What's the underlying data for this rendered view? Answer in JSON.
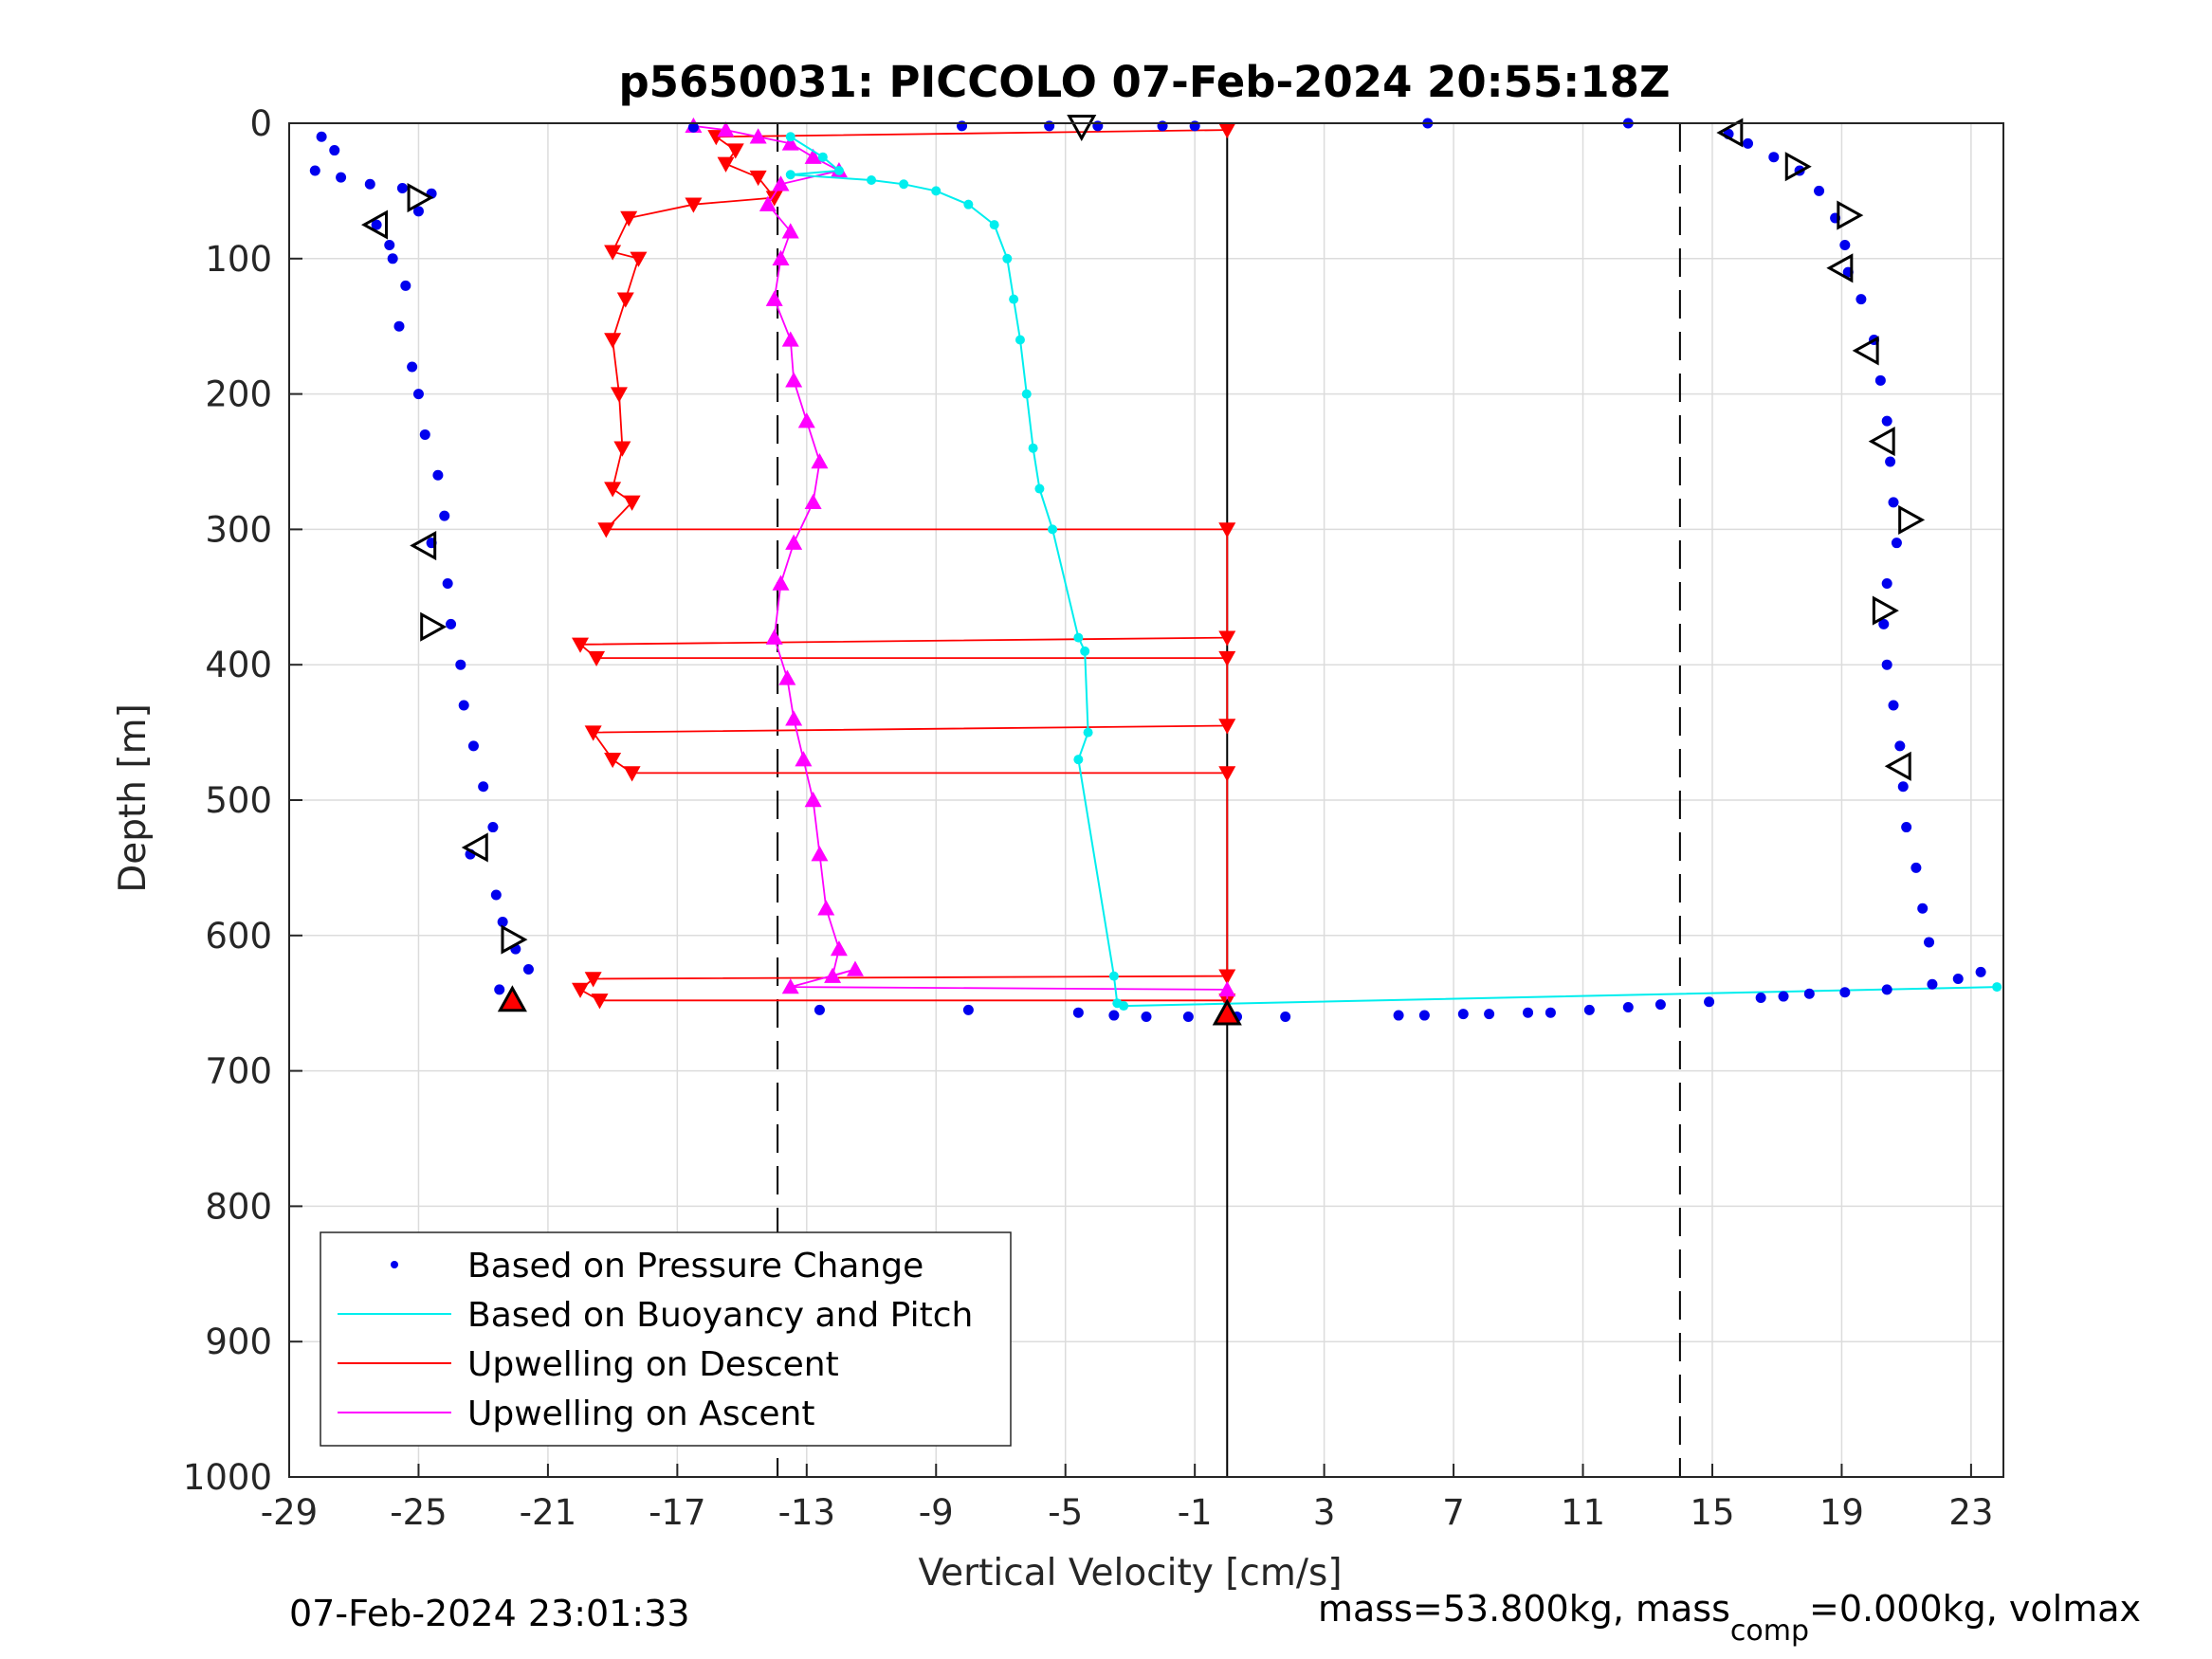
{
  "footer": {
    "left": "07-Feb-2024 23:01:33",
    "right_prefix": "mass=53.800kg, mass",
    "right_sub": "comp",
    "right_suffix": "=0.000kg, volmax"
  },
  "chart_data": {
    "type": "scatter",
    "title": "p5650031: PICCOLO 07-Feb-2024 20:55:18Z",
    "xlabel": "Vertical Velocity [cm/s]",
    "ylabel": "Depth [m]",
    "xlim": [
      -29,
      24
    ],
    "ylim": [
      1000,
      0
    ],
    "y_reversed": true,
    "xticks": [
      -29,
      -25,
      -21,
      -17,
      -13,
      -9,
      -5,
      -1,
      3,
      7,
      11,
      15,
      19,
      23
    ],
    "yticks": [
      0,
      100,
      200,
      300,
      400,
      500,
      600,
      700,
      800,
      900,
      1000
    ],
    "grid": true,
    "legend_position": "bottom-left",
    "reference_lines": [
      {
        "x": -13.9,
        "style": "dashed",
        "color": "#000000"
      },
      {
        "x": 14,
        "style": "dashed",
        "color": "#000000"
      },
      {
        "x": 0,
        "style": "solid",
        "color": "#000000"
      }
    ],
    "series": [
      {
        "name": "Based on Pressure Change",
        "color": "#0000ee",
        "marker": "dot",
        "descent": [
          [
            -28,
            10
          ],
          [
            -27.6,
            20
          ],
          [
            -28.2,
            35
          ],
          [
            -27.4,
            40
          ],
          [
            -26.5,
            45
          ],
          [
            -25.5,
            48
          ],
          [
            -24.6,
            52
          ],
          [
            -25,
            65
          ],
          [
            -26.3,
            75
          ],
          [
            -25.9,
            90
          ],
          [
            -25.8,
            100
          ],
          [
            -25.4,
            120
          ],
          [
            -25.6,
            150
          ],
          [
            -25.2,
            180
          ],
          [
            -25,
            200
          ],
          [
            -24.8,
            230
          ],
          [
            -24.4,
            260
          ],
          [
            -24.2,
            290
          ],
          [
            -24.6,
            310
          ],
          [
            -24.1,
            340
          ],
          [
            -24,
            370
          ],
          [
            -23.7,
            400
          ],
          [
            -23.6,
            430
          ],
          [
            -23.3,
            460
          ],
          [
            -23,
            490
          ],
          [
            -22.7,
            520
          ],
          [
            -23.4,
            540
          ],
          [
            -22.6,
            570
          ],
          [
            -22.4,
            590
          ],
          [
            -22,
            610
          ],
          [
            -21.6,
            625
          ],
          [
            -22.5,
            640
          ],
          [
            -22.2,
            650
          ]
        ],
        "bottom": [
          [
            -12.6,
            655
          ],
          [
            -8,
            655
          ],
          [
            -4.6,
            657
          ],
          [
            -3.5,
            659
          ],
          [
            -2.5,
            660
          ],
          [
            -1.2,
            660
          ],
          [
            0.3,
            660
          ],
          [
            1.8,
            660
          ],
          [
            5.3,
            659
          ],
          [
            6.1,
            659
          ],
          [
            7.3,
            658
          ],
          [
            8.1,
            658
          ],
          [
            9.3,
            657
          ],
          [
            10,
            657
          ],
          [
            11.2,
            655
          ],
          [
            12.4,
            653
          ],
          [
            13.4,
            651
          ],
          [
            14.9,
            649
          ],
          [
            16.5,
            646
          ],
          [
            17.2,
            645
          ],
          [
            18,
            643
          ],
          [
            19.1,
            642
          ],
          [
            20.4,
            640
          ],
          [
            21.8,
            636
          ],
          [
            22.6,
            632
          ],
          [
            23.3,
            627
          ]
        ],
        "surface": [
          [
            -5.5,
            2
          ],
          [
            -4,
            2
          ],
          [
            -2,
            2
          ],
          [
            -1,
            2
          ],
          [
            6.2,
            0
          ],
          [
            12.4,
            0
          ],
          [
            -8.2,
            2
          ],
          [
            -16.5,
            3
          ]
        ],
        "ascent": [
          [
            15.5,
            8
          ],
          [
            16.1,
            15
          ],
          [
            16.9,
            25
          ],
          [
            17.7,
            35
          ],
          [
            18.3,
            50
          ],
          [
            18.8,
            70
          ],
          [
            19.1,
            90
          ],
          [
            19.2,
            110
          ],
          [
            19.6,
            130
          ],
          [
            20,
            160
          ],
          [
            20.2,
            190
          ],
          [
            20.4,
            220
          ],
          [
            20.5,
            250
          ],
          [
            20.6,
            280
          ],
          [
            20.7,
            310
          ],
          [
            20.4,
            340
          ],
          [
            20.3,
            370
          ],
          [
            20.4,
            400
          ],
          [
            20.6,
            430
          ],
          [
            20.8,
            460
          ],
          [
            20.9,
            490
          ],
          [
            21,
            520
          ],
          [
            21.3,
            550
          ],
          [
            21.5,
            580
          ],
          [
            21.7,
            605
          ]
        ]
      },
      {
        "name": "Based on Buoyancy and Pitch",
        "color": "#00eeee",
        "marker": "line",
        "points": [
          [
            -13.5,
            10
          ],
          [
            -12.5,
            25
          ],
          [
            -12,
            35
          ],
          [
            -13.5,
            38
          ],
          [
            -11,
            42
          ],
          [
            -10,
            45
          ],
          [
            -9,
            50
          ],
          [
            -8,
            60
          ],
          [
            -7.2,
            75
          ],
          [
            -6.8,
            100
          ],
          [
            -6.6,
            130
          ],
          [
            -6.4,
            160
          ],
          [
            -6.2,
            200
          ],
          [
            -6,
            240
          ],
          [
            -5.8,
            270
          ],
          [
            -5.4,
            300
          ],
          [
            -4.6,
            380
          ],
          [
            -4.4,
            390
          ],
          [
            -4.3,
            450
          ],
          [
            -4.6,
            470
          ],
          [
            -3.5,
            630
          ],
          [
            -3.4,
            650
          ],
          [
            -3.2,
            652
          ],
          [
            23.8,
            638
          ]
        ]
      },
      {
        "name": "Upwelling on Descent",
        "color": "#ff0000",
        "marker": "triangle-down",
        "points": [
          [
            0,
            5
          ],
          [
            -15.8,
            10
          ],
          [
            -15.2,
            20
          ],
          [
            -15.5,
            30
          ],
          [
            -14.5,
            40
          ],
          [
            -14,
            55
          ],
          [
            -16.5,
            60
          ],
          [
            -18.5,
            70
          ],
          [
            -19,
            95
          ],
          [
            -18.2,
            100
          ],
          [
            -18.6,
            130
          ],
          [
            -19,
            160
          ],
          [
            -18.8,
            200
          ],
          [
            -18.7,
            240
          ],
          [
            -19,
            270
          ],
          [
            -18.4,
            280
          ],
          [
            -19.2,
            300
          ],
          [
            0,
            300
          ],
          [
            0,
            380
          ],
          [
            -20,
            385
          ],
          [
            -19.5,
            395
          ],
          [
            0,
            395
          ],
          [
            0,
            445
          ],
          [
            -19.6,
            450
          ],
          [
            -19,
            470
          ],
          [
            -18.4,
            480
          ],
          [
            0,
            480
          ],
          [
            0,
            630
          ],
          [
            -19.6,
            632
          ],
          [
            -20,
            640
          ],
          [
            -19.4,
            648
          ],
          [
            0,
            648
          ]
        ]
      },
      {
        "name": "Upwelling on Ascent",
        "color": "#ff00ff",
        "marker": "triangle-up",
        "points": [
          [
            -16.5,
            2
          ],
          [
            -15.5,
            5
          ],
          [
            -14.5,
            10
          ],
          [
            -13.5,
            15
          ],
          [
            -12.8,
            25
          ],
          [
            -12,
            35
          ],
          [
            -13.8,
            45
          ],
          [
            -14.2,
            60
          ],
          [
            -13.5,
            80
          ],
          [
            -13.8,
            100
          ],
          [
            -14,
            130
          ],
          [
            -13.5,
            160
          ],
          [
            -13.4,
            190
          ],
          [
            -13,
            220
          ],
          [
            -12.6,
            250
          ],
          [
            -12.8,
            280
          ],
          [
            -13.4,
            310
          ],
          [
            -13.8,
            340
          ],
          [
            -14,
            380
          ],
          [
            -13.6,
            410
          ],
          [
            -13.4,
            440
          ],
          [
            -13.1,
            470
          ],
          [
            -12.8,
            500
          ],
          [
            -12.6,
            540
          ],
          [
            -12.4,
            580
          ],
          [
            -12,
            610
          ],
          [
            -12.2,
            630
          ],
          [
            -11.5,
            625
          ],
          [
            -13.5,
            638
          ],
          [
            0,
            640
          ],
          [
            0,
            660
          ]
        ]
      }
    ],
    "markers": [
      {
        "x": -25,
        "y": 55,
        "kind": "open-triangle-right"
      },
      {
        "x": -26.3,
        "y": 75,
        "kind": "open-triangle-left"
      },
      {
        "x": -24.8,
        "y": 312,
        "kind": "open-triangle-left"
      },
      {
        "x": -24.6,
        "y": 372,
        "kind": "open-triangle-right"
      },
      {
        "x": -23.2,
        "y": 535,
        "kind": "open-triangle-left"
      },
      {
        "x": -22.1,
        "y": 603,
        "kind": "open-triangle-right"
      },
      {
        "x": -22.1,
        "y": 648,
        "kind": "filled-triangle-up"
      },
      {
        "x": -4.5,
        "y": 2,
        "kind": "open-triangle-down"
      },
      {
        "x": 0,
        "y": 658,
        "kind": "filled-triangle-up"
      },
      {
        "x": 15.6,
        "y": 7,
        "kind": "open-triangle-left"
      },
      {
        "x": 17.6,
        "y": 32,
        "kind": "open-triangle-right"
      },
      {
        "x": 19.2,
        "y": 68,
        "kind": "open-triangle-right"
      },
      {
        "x": 19,
        "y": 107,
        "kind": "open-triangle-left"
      },
      {
        "x": 19.8,
        "y": 168,
        "kind": "open-triangle-left"
      },
      {
        "x": 20.3,
        "y": 235,
        "kind": "open-triangle-left"
      },
      {
        "x": 21.1,
        "y": 293,
        "kind": "open-triangle-right"
      },
      {
        "x": 20.3,
        "y": 360,
        "kind": "open-triangle-right"
      },
      {
        "x": 20.8,
        "y": 475,
        "kind": "open-triangle-left"
      }
    ]
  }
}
